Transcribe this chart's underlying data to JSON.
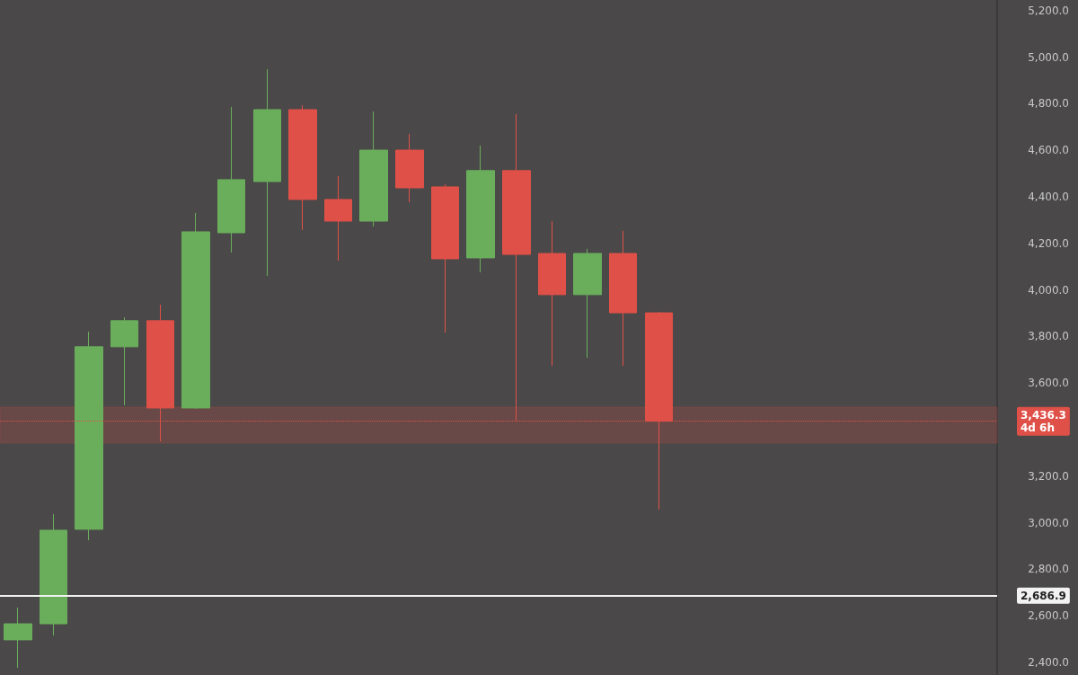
{
  "chart_data": {
    "type": "candlestick",
    "categories": [
      null,
      null,
      null,
      null,
      null,
      null,
      null,
      null,
      null,
      null,
      null,
      null,
      null,
      null,
      null,
      null,
      null,
      null,
      null,
      null,
      null,
      null,
      null,
      null,
      null,
      null,
      null,
      null
    ],
    "ohlc": [
      [
        2497,
        2636,
        2377,
        2566
      ],
      [
        2566,
        3037,
        2516,
        2968
      ],
      [
        2972,
        3821,
        2925,
        3756
      ],
      [
        3756,
        3883,
        3505,
        3868
      ],
      [
        3868,
        3937,
        3350,
        3493
      ],
      [
        3493,
        4331,
        3490,
        4250
      ],
      [
        4246,
        4787,
        4161,
        4474
      ],
      [
        4466,
        4949,
        4061,
        4775
      ],
      [
        4775,
        4794,
        4258,
        4389
      ],
      [
        4389,
        4489,
        4126,
        4296
      ],
      [
        4296,
        4767,
        4273,
        4601
      ],
      [
        4601,
        4671,
        4377,
        4439
      ],
      [
        4443,
        4455,
        3817,
        4134
      ],
      [
        4138,
        4621,
        4076,
        4513
      ],
      [
        4513,
        4756,
        3435,
        4153
      ],
      [
        4157,
        4296,
        3674,
        3980
      ],
      [
        3980,
        4177,
        3709,
        4157
      ],
      [
        4157,
        4254,
        3674,
        3902
      ],
      [
        3902,
        3906,
        3057,
        3436.3
      ],
      null,
      null,
      null,
      null,
      null,
      null,
      null,
      null,
      null
    ],
    "colors": [
      "#6aae5c",
      "#6aae5c",
      "#6aae5c",
      "#6aae5c",
      "#df5048",
      "#6aae5c",
      "#6aae5c",
      "#6aae5c",
      "#df5048",
      "#df5048",
      "#6aae5c",
      "#df5048",
      "#df5048",
      "#6aae5c",
      "#df5048",
      "#df5048",
      "#6aae5c",
      "#df5048",
      "#df5048",
      null,
      null,
      null,
      null,
      null,
      null,
      null,
      null,
      null
    ],
    "ylim": [
      2346,
      5246
    ],
    "yticks": [
      {
        "value": 2400,
        "label": "2,400.0"
      },
      {
        "value": 2600,
        "label": "2,600.0"
      },
      {
        "value": 2800,
        "label": "2,800.0"
      },
      {
        "value": 3000,
        "label": "3,000.0"
      },
      {
        "value": 3200,
        "label": "3,200.0"
      },
      {
        "value": 3600,
        "label": "3,600.0"
      },
      {
        "value": 3800,
        "label": "3,800.0"
      },
      {
        "value": 4000,
        "label": "4,000.0"
      },
      {
        "value": 4200,
        "label": "4,200.0"
      },
      {
        "value": 4400,
        "label": "4,400.0"
      },
      {
        "value": 4600,
        "label": "4,600.0"
      },
      {
        "value": 4800,
        "label": "4,800.0"
      },
      {
        "value": 5000,
        "label": "5,000.0"
      },
      {
        "value": 5200,
        "label": "5,200.0"
      }
    ],
    "ref_lines": [
      {
        "axis": "y",
        "value": 3436.3,
        "label": "3,436.3\n4d 6h",
        "color": "#df5048",
        "line_style": "dotted"
      },
      {
        "axis": "y",
        "value": 2686.9,
        "label": "2,686.9",
        "color": "#f2f2f2",
        "line_style": "solid"
      }
    ],
    "bands": [
      {
        "axis": "y",
        "from": 3342,
        "to": 3497,
        "color": "#df5048"
      }
    ],
    "grid": false,
    "tick_labels": "y"
  }
}
